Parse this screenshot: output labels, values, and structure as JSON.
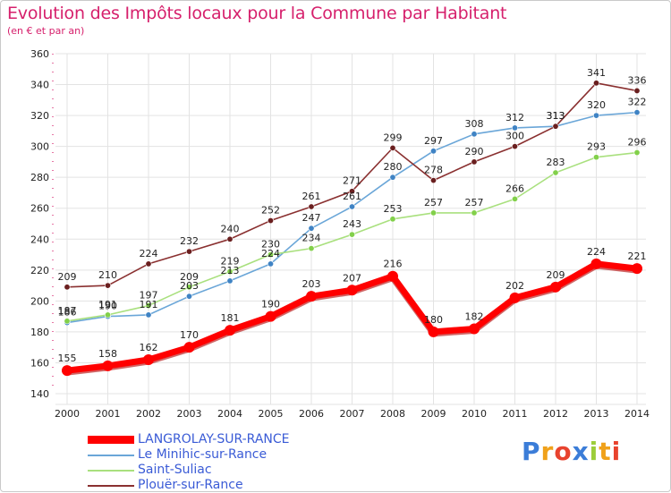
{
  "title": "Evolution des Impôts locaux pour la Commune par Habitant",
  "subtitle": "(en € et par an)",
  "logo": {
    "text": "Proxiti",
    "letters": [
      "P",
      "r",
      "o",
      "x",
      "i",
      "t",
      "i"
    ]
  },
  "colors": {
    "title": "#d6206c",
    "grid": "#e3e3e3",
    "axis_dash": "#d6206c",
    "legend_text": "#3a5bd6"
  },
  "chart_data": {
    "type": "line",
    "title": "Evolution des Impôts locaux pour la Commune par Habitant",
    "ylabel": "(en € et par an)",
    "xlabel": "",
    "ylim": [
      140,
      360
    ],
    "yticks": [
      140,
      160,
      180,
      200,
      220,
      240,
      260,
      280,
      300,
      320,
      340,
      360
    ],
    "categories": [
      "2000",
      "2001",
      "2002",
      "2003",
      "2004",
      "2005",
      "2006",
      "2007",
      "2008",
      "2009",
      "2010",
      "2011",
      "2012",
      "2013",
      "2014"
    ],
    "grid": true,
    "legend_position": "bottom-left",
    "series": [
      {
        "name": "LANGROLAY-SUR-RANCE",
        "color": "#ff0000",
        "marker": "#ff0000",
        "width": 7,
        "values": [
          155,
          158,
          162,
          170,
          181,
          190,
          203,
          207,
          216,
          180,
          182,
          202,
          209,
          224,
          221
        ]
      },
      {
        "name": "Le Minihic-sur-Rance",
        "color": "#6aa6d8",
        "marker": "#3f83c4",
        "width": 1.6,
        "values": [
          186,
          190,
          191,
          203,
          213,
          224,
          247,
          261,
          280,
          297,
          308,
          312,
          313,
          320,
          322
        ]
      },
      {
        "name": "Saint-Suliac",
        "color": "#a9e07e",
        "marker": "#82d04a",
        "width": 1.6,
        "values": [
          187,
          191,
          197,
          209,
          219,
          230,
          234,
          243,
          253,
          257,
          257,
          266,
          283,
          293,
          296
        ]
      },
      {
        "name": "Plouër-sur-Rance",
        "color": "#8a3030",
        "marker": "#6a1f1f",
        "width": 1.6,
        "values": [
          209,
          210,
          224,
          232,
          240,
          252,
          261,
          271,
          299,
          278,
          290,
          300,
          313,
          341,
          336
        ]
      }
    ]
  }
}
